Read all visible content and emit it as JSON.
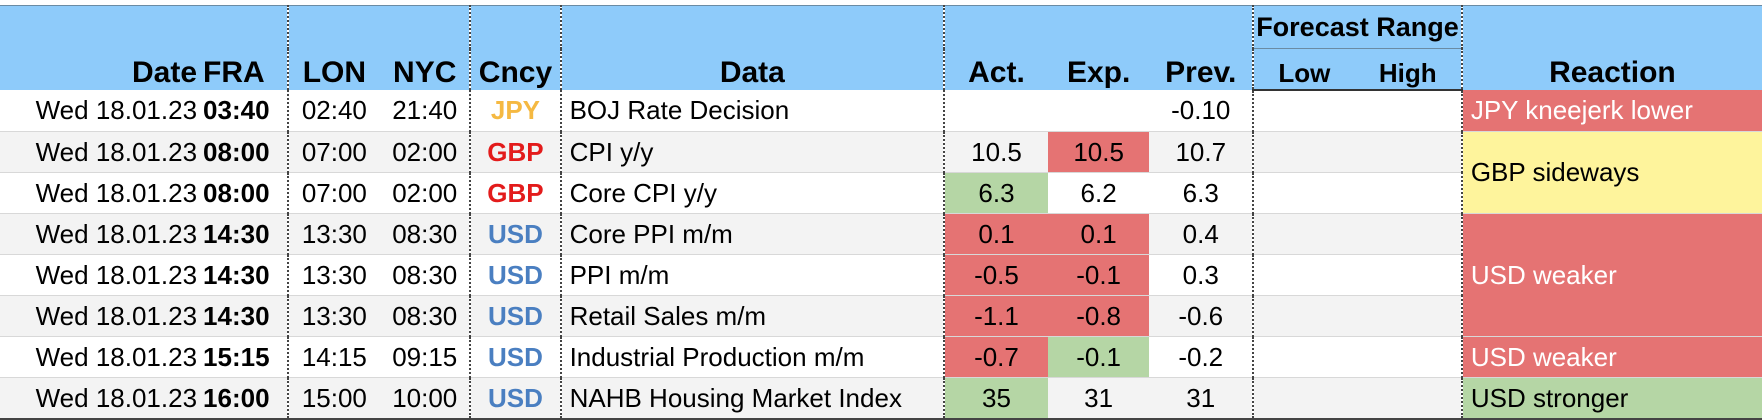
{
  "colors": {
    "header_bg": "#8ecbfa",
    "jpy": "#f5b942",
    "gbp": "#e31b1b",
    "usd": "#4a7fc1",
    "red_cell": "#e57373",
    "green_cell": "#b5d6a5",
    "yellow_cell": "#fef49c"
  },
  "header": {
    "date": "Date",
    "fra": "FRA",
    "lon": "LON",
    "nyc": "NYC",
    "cncy": "Cncy",
    "data": "Data",
    "act": "Act.",
    "exp": "Exp.",
    "prev": "Prev.",
    "forecast_range": "Forecast Range",
    "low": "Low",
    "high": "High",
    "reaction": "Reaction"
  },
  "rows": [
    {
      "date": "Wed 18.01.23",
      "fra": "03:40",
      "lon": "02:40",
      "nyc": "21:40",
      "ccy": "JPY",
      "data": "BOJ Rate Decision",
      "act": "",
      "exp": "",
      "prev": "-0.10"
    },
    {
      "date": "Wed 18.01.23",
      "fra": "08:00",
      "lon": "07:00",
      "nyc": "02:00",
      "ccy": "GBP",
      "data": "CPI y/y",
      "act": "10.5",
      "exp": "10.5",
      "prev": "10.7"
    },
    {
      "date": "Wed 18.01.23",
      "fra": "08:00",
      "lon": "07:00",
      "nyc": "02:00",
      "ccy": "GBP",
      "data": "Core CPI y/y",
      "act": "6.3",
      "exp": "6.2",
      "prev": "6.3"
    },
    {
      "date": "Wed 18.01.23",
      "fra": "14:30",
      "lon": "13:30",
      "nyc": "08:30",
      "ccy": "USD",
      "data": "Core PPI m/m",
      "act": "0.1",
      "exp": "0.1",
      "prev": "0.4"
    },
    {
      "date": "Wed 18.01.23",
      "fra": "14:30",
      "lon": "13:30",
      "nyc": "08:30",
      "ccy": "USD",
      "data": "PPI m/m",
      "act": "-0.5",
      "exp": "-0.1",
      "prev": "0.3"
    },
    {
      "date": "Wed 18.01.23",
      "fra": "14:30",
      "lon": "13:30",
      "nyc": "08:30",
      "ccy": "USD",
      "data": "Retail Sales m/m",
      "act": "-1.1",
      "exp": "-0.8",
      "prev": "-0.6"
    },
    {
      "date": "Wed 18.01.23",
      "fra": "15:15",
      "lon": "14:15",
      "nyc": "09:15",
      "ccy": "USD",
      "data": "Industrial Production m/m",
      "act": "-0.7",
      "exp": "-0.1",
      "prev": "-0.2"
    },
    {
      "date": "Wed 18.01.23",
      "fra": "16:00",
      "lon": "15:00",
      "nyc": "10:00",
      "ccy": "USD",
      "data": "NAHB Housing Market Index",
      "act": "35",
      "exp": "31",
      "prev": "31"
    }
  ],
  "reactions": {
    "r1": "JPY kneejerk lower",
    "r2": "GBP sideways",
    "r3": "USD weaker",
    "r4": "USD weaker",
    "r5": "USD stronger"
  }
}
